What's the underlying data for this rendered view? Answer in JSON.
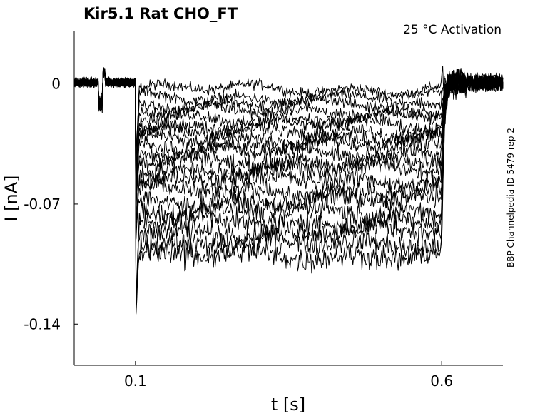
{
  "chart_data": {
    "type": "line",
    "title": "Kir5.1  Rat  CHO_FT",
    "subtitle": "25 °C  Activation",
    "side_note": "BBP Channelpedia ID 5479 rep 2",
    "xlabel": "t [s]",
    "ylabel": "I [nA]",
    "xlim": [
      0.0,
      0.7
    ],
    "ylim": [
      -0.164,
      0.031
    ],
    "xticks": [
      {
        "value": 0.1,
        "label": "0.1"
      },
      {
        "value": 0.6,
        "label": "0.6"
      }
    ],
    "yticks": [
      {
        "value": 0.0,
        "label": "0"
      },
      {
        "value": -0.07,
        "label": "-0.07"
      },
      {
        "value": -0.14,
        "label": "-0.14"
      }
    ],
    "grid": false,
    "line_color": "#000000",
    "protocol": {
      "step_on": 0.1,
      "step_off": 0.6
    },
    "series": [
      {
        "level": -0.003
      },
      {
        "level": -0.008
      },
      {
        "level": -0.012
      },
      {
        "level": -0.016
      },
      {
        "level": -0.02
      },
      {
        "level": -0.024
      },
      {
        "level": -0.028
      },
      {
        "level": -0.032
      },
      {
        "level": -0.036
      },
      {
        "level": -0.04
      },
      {
        "level": -0.045
      },
      {
        "level": -0.05
      },
      {
        "level": -0.056
      },
      {
        "level": -0.062
      },
      {
        "level": -0.068
      },
      {
        "level": -0.074
      },
      {
        "level": -0.08
      },
      {
        "level": -0.086
      },
      {
        "level": -0.093
      },
      {
        "level": -0.1
      }
    ]
  }
}
